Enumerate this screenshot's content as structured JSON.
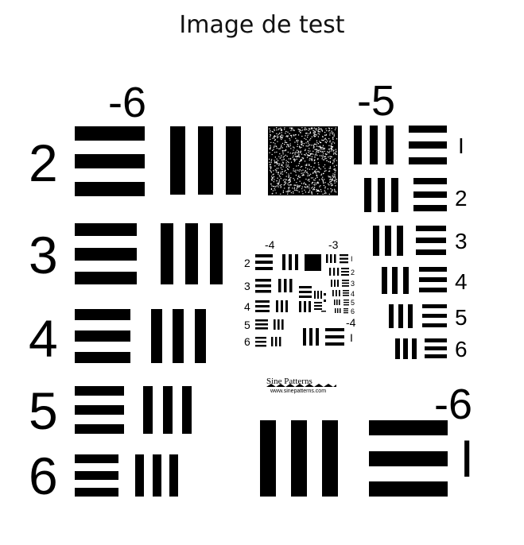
{
  "title": "Image de test",
  "chart": {
    "group_labels": [
      "-6",
      "-5",
      "-4",
      "-3",
      "-4",
      "-6"
    ],
    "element_labels_left": [
      "2",
      "3",
      "4",
      "5",
      "6"
    ],
    "element_labels_right": [
      "I",
      "2",
      "3",
      "4",
      "5",
      "6"
    ],
    "small_left_labels": [
      "2",
      "3",
      "4",
      "5",
      "6"
    ],
    "small_right_labels": [
      "I",
      "2",
      "3",
      "4",
      "5",
      "6"
    ],
    "tiny_group_label": "-4",
    "tiny_element_label": "I",
    "bottom_element_label": "I",
    "logo_text": "Sine Patterns",
    "logo_url": "www.sinepatterns.com"
  }
}
